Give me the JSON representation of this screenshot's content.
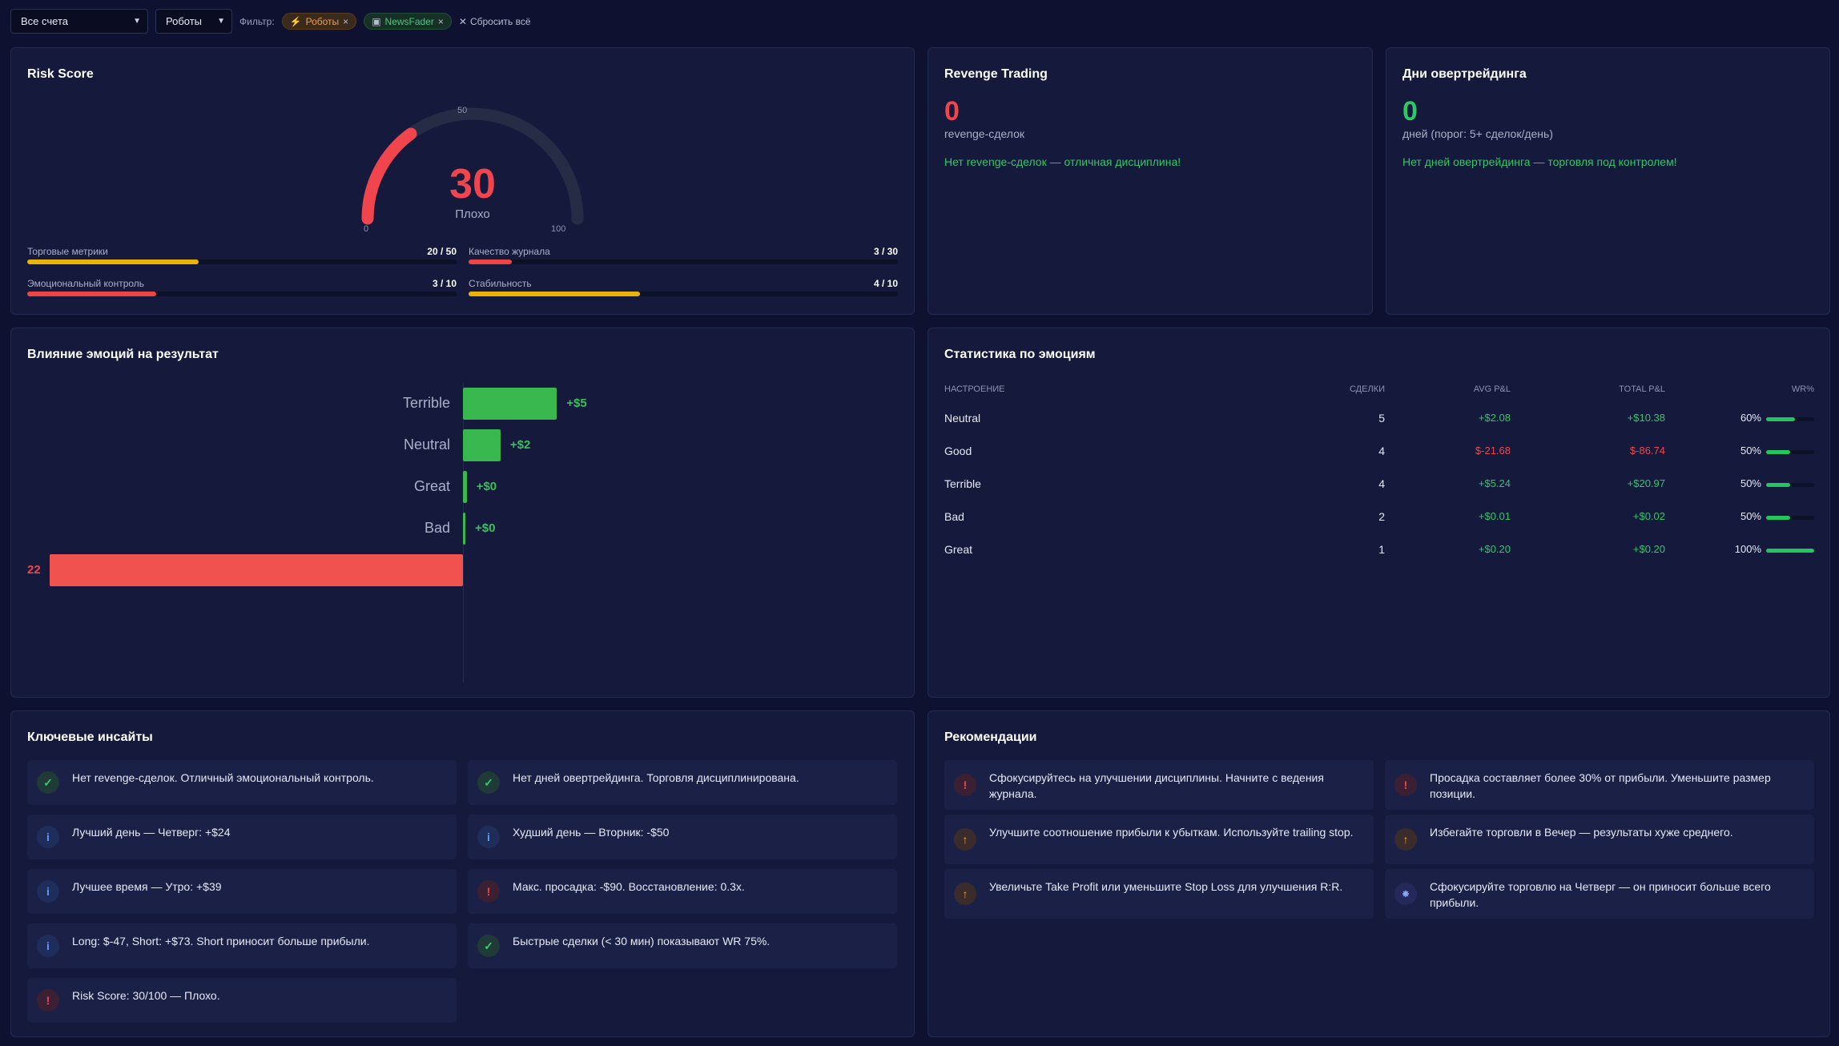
{
  "filters": {
    "accounts": "Все счета",
    "robots": "Роботы",
    "label": "Фильтр:",
    "chips": [
      {
        "label": "Роботы",
        "icon": "bolt-icon"
      },
      {
        "label": "NewsFader",
        "icon": "robot-icon"
      }
    ],
    "reset": "Сбросить всё"
  },
  "risk": {
    "title": "Risk Score",
    "score": "30",
    "grade": "Плохо",
    "max": 100,
    "ticks": {
      "min": "0",
      "mid": "50",
      "max": "100"
    },
    "metrics": [
      {
        "label": "Торговые метрики",
        "value": "20 / 50",
        "fraction": 0.4,
        "color": "#eab308"
      },
      {
        "label": "Качество журнала",
        "value": "3 / 30",
        "fraction": 0.1,
        "color": "#ef4444"
      },
      {
        "label": "Эмоциональный контроль",
        "value": "3 / 10",
        "fraction": 0.3,
        "color": "#ef4444"
      },
      {
        "label": "Стабильность",
        "value": "4 / 10",
        "fraction": 0.4,
        "color": "#eab308"
      }
    ]
  },
  "revenge": {
    "title": "Revenge Trading",
    "count": "0",
    "sub": "revenge-сделок",
    "msg": "Нет revenge-сделок — отличная дисциплина!"
  },
  "overtrading": {
    "title": "Дни овертрейдинга",
    "count": "0",
    "sub": "дней (порог: 5+ сделок/день)",
    "msg": "Нет дней овертрейдинга — торговля под контролем!"
  },
  "emotion_chart": {
    "title": "Влияние эмоций на результат",
    "bars": [
      {
        "label": "Terrible",
        "value": 5,
        "text": "+$5"
      },
      {
        "label": "Neutral",
        "value": 2,
        "text": "+$2"
      },
      {
        "label": "Great",
        "value": 0.2,
        "text": "+$0"
      },
      {
        "label": "Bad",
        "value": 0.01,
        "text": "+$0"
      },
      {
        "label": "",
        "value": -22,
        "text": "22"
      }
    ]
  },
  "emotion_stats": {
    "title": "Статистика по эмоциям",
    "headers": [
      "Настроение",
      "Сделки",
      "Avg P&L",
      "Total P&L",
      "WR%"
    ],
    "rows": [
      {
        "mood": "Neutral",
        "trades": "5",
        "avg": "+$2.08",
        "total": "+$10.38",
        "wr": "60%",
        "wr_value": 0.6,
        "positive": true
      },
      {
        "mood": "Good",
        "trades": "4",
        "avg": "$-21.68",
        "total": "$-86.74",
        "wr": "50%",
        "wr_value": 0.5,
        "positive": false
      },
      {
        "mood": "Terrible",
        "trades": "4",
        "avg": "+$5.24",
        "total": "+$20.97",
        "wr": "50%",
        "wr_value": 0.5,
        "positive": true
      },
      {
        "mood": "Bad",
        "trades": "2",
        "avg": "+$0.01",
        "total": "+$0.02",
        "wr": "50%",
        "wr_value": 0.5,
        "positive": true
      },
      {
        "mood": "Great",
        "trades": "1",
        "avg": "+$0.20",
        "total": "+$0.20",
        "wr": "100%",
        "wr_value": 1.0,
        "positive": true
      }
    ]
  },
  "insights": {
    "title": "Ключевые инсайты",
    "items": [
      {
        "type": "ok",
        "icon": "check-icon",
        "text": "Нет revenge-сделок. Отличный эмоциональный контроль."
      },
      {
        "type": "ok",
        "icon": "check-icon",
        "text": "Нет дней овертрейдинга. Торговля дисциплинирована."
      },
      {
        "type": "info",
        "icon": "info-icon",
        "text": "Лучший день — Четверг: +$24"
      },
      {
        "type": "info",
        "icon": "info-icon",
        "text": "Худший день — Вторник: -$50"
      },
      {
        "type": "info",
        "icon": "info-icon",
        "text": "Лучшее время — Утро: +$39"
      },
      {
        "type": "bad",
        "icon": "alert-icon",
        "text": "Макс. просадка: -$90. Восстановление: 0.3x."
      },
      {
        "type": "info",
        "icon": "info-icon",
        "text": "Long: $-47, Short: +$73. Short приносит больше прибыли."
      },
      {
        "type": "ok",
        "icon": "check-icon",
        "text": "Быстрые сделки (< 30 мин) показывают WR 75%."
      },
      {
        "type": "bad",
        "icon": "alert-icon",
        "text": "Risk Score: 30/100 — Плохо."
      }
    ]
  },
  "recommendations": {
    "title": "Рекомендации",
    "items": [
      {
        "type": "bad",
        "icon": "alert-icon",
        "text": "Сфокусируйтесь на улучшении дисциплины. Начните с ведения журнала."
      },
      {
        "type": "bad",
        "icon": "alert-icon",
        "text": "Просадка составляет более 30% от прибыли. Уменьшите размер позиции."
      },
      {
        "type": "warn",
        "icon": "arrow-up-icon",
        "text": "Улучшите соотношение прибыли к убыткам. Используйте trailing stop."
      },
      {
        "type": "warn",
        "icon": "arrow-up-icon",
        "text": "Избегайте торговли в Вечер — результаты хуже среднего."
      },
      {
        "type": "warn",
        "icon": "arrow-up-icon",
        "text": "Увеличьте Take Profit или уменьшите Stop Loss для улучшения R:R."
      },
      {
        "type": "tip",
        "icon": "lightbulb-icon",
        "text": "Сфокусируйте торговлю на Четверг — он приносит больше всего прибыли."
      }
    ]
  }
}
